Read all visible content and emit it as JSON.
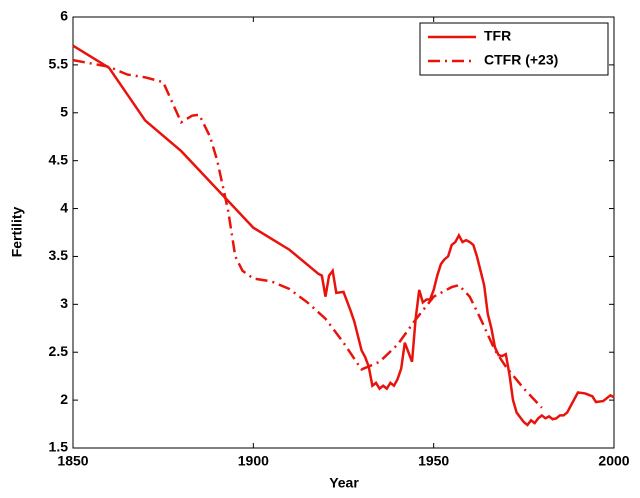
{
  "chart_data": {
    "type": "line",
    "x_label": "Year",
    "y_label": "Fertility",
    "xlim": [
      1850,
      2000
    ],
    "xticks": [
      1850,
      1900,
      1950,
      2000
    ],
    "ylim": [
      1.5,
      6
    ],
    "yticks": [
      1.5,
      2,
      2.5,
      3,
      3.5,
      4,
      4.5,
      5,
      5.5,
      6
    ],
    "legend": "upper-right",
    "series": [
      {
        "name": "TFR",
        "color": "#e8140c",
        "line_style": "solid",
        "x": [
          1850,
          1860,
          1870,
          1880,
          1890,
          1900,
          1910,
          1918,
          1919,
          1920,
          1921,
          1922,
          1923,
          1925,
          1927,
          1928,
          1930,
          1931,
          1932,
          1933,
          1934,
          1935,
          1936,
          1937,
          1938,
          1939,
          1940,
          1941,
          1942,
          1943,
          1944,
          1945,
          1946,
          1947,
          1948,
          1949,
          1950,
          1951,
          1952,
          1953,
          1954,
          1955,
          1956,
          1957,
          1958,
          1959,
          1960,
          1961,
          1962,
          1963,
          1964,
          1965,
          1966,
          1967,
          1968,
          1969,
          1970,
          1971,
          1972,
          1973,
          1974,
          1975,
          1976,
          1977,
          1978,
          1979,
          1980,
          1981,
          1982,
          1983,
          1984,
          1985,
          1986,
          1987,
          1988,
          1989,
          1990,
          1992,
          1994,
          1995,
          1997,
          1999,
          2000
        ],
        "values": [
          5.7,
          5.47,
          4.92,
          4.6,
          4.2,
          3.8,
          3.57,
          3.32,
          3.3,
          3.08,
          3.3,
          3.35,
          3.12,
          3.13,
          2.93,
          2.82,
          2.52,
          2.45,
          2.35,
          2.15,
          2.18,
          2.12,
          2.15,
          2.12,
          2.18,
          2.15,
          2.22,
          2.33,
          2.6,
          2.5,
          2.4,
          2.85,
          3.15,
          3.02,
          3.05,
          3.05,
          3.15,
          3.3,
          3.42,
          3.47,
          3.5,
          3.62,
          3.65,
          3.72,
          3.65,
          3.67,
          3.65,
          3.62,
          3.5,
          3.35,
          3.2,
          2.9,
          2.75,
          2.55,
          2.47,
          2.46,
          2.48,
          2.27,
          2.0,
          1.87,
          1.82,
          1.77,
          1.74,
          1.79,
          1.76,
          1.81,
          1.84,
          1.81,
          1.83,
          1.8,
          1.81,
          1.84,
          1.84,
          1.87,
          1.94,
          2.01,
          2.08,
          2.07,
          2.04,
          1.98,
          1.99,
          2.05,
          2.03
        ]
      },
      {
        "name": "CTFR (+23)",
        "color": "#e8140c",
        "line_style": "dashdot",
        "x": [
          1850,
          1860,
          1865,
          1870,
          1875,
          1880,
          1883,
          1885,
          1888,
          1890,
          1893,
          1895,
          1897,
          1900,
          1905,
          1910,
          1915,
          1920,
          1925,
          1930,
          1935,
          1940,
          1945,
          1950,
          1955,
          1957,
          1960,
          1963,
          1967,
          1970,
          1975,
          1980
        ],
        "values": [
          5.55,
          5.48,
          5.4,
          5.37,
          5.32,
          4.9,
          4.97,
          4.98,
          4.75,
          4.5,
          3.98,
          3.5,
          3.35,
          3.27,
          3.24,
          3.16,
          3.02,
          2.85,
          2.6,
          2.32,
          2.4,
          2.58,
          2.84,
          3.08,
          3.18,
          3.2,
          3.08,
          2.85,
          2.52,
          2.35,
          2.12,
          1.92
        ]
      }
    ]
  }
}
